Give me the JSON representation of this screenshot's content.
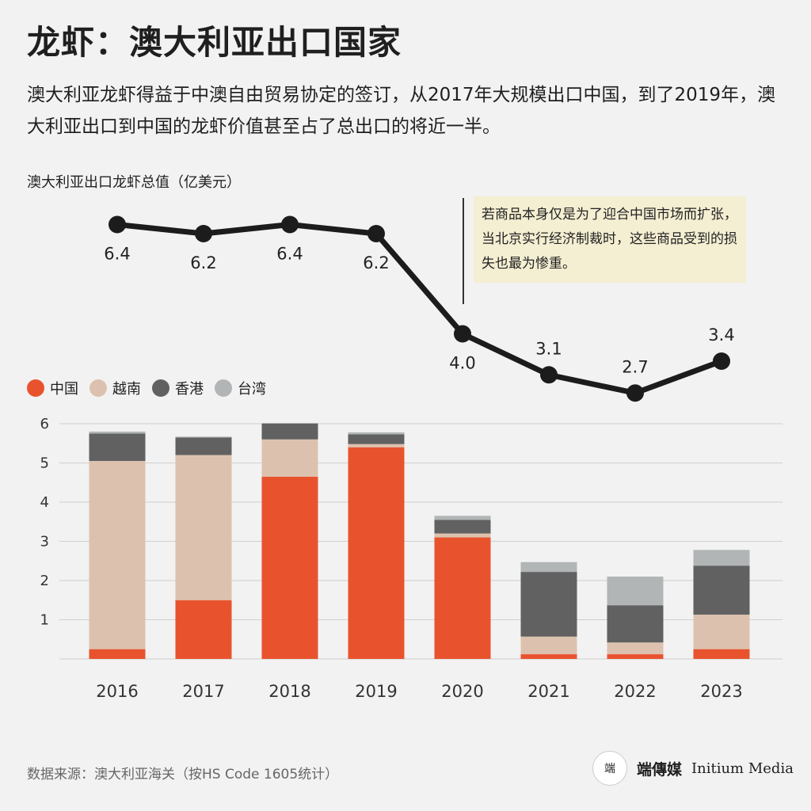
{
  "title": "龙虾：澳大利亚出口国家",
  "subtitle": "澳大利亚龙虾得益于中澳自由贸易协定的签订，从2017年大规模出口中国，到了2019年，澳大利亚出口到中国的龙虾价值甚至占了总出口的将近一半。",
  "annotation": "若商品本身仅是为了迎合中国市场而扩张，当北京实行经济制裁时，这些商品受到的损失也最为惨重。",
  "source": "数据来源：澳大利亚海关（按HS Code 1605统计）",
  "brand": {
    "logo": "端",
    "name_cn": "端傳媒",
    "name_en": "Initium Media"
  },
  "colors": {
    "china": "#e8532e",
    "vietnam": "#dcc2ae",
    "hongkong": "#616161",
    "taiwan": "#b1b5b5",
    "line": "#1c1c1c",
    "grid": "#cfcfcf",
    "annotation_bg": "#f4eed2"
  },
  "chart_data": [
    {
      "type": "line",
      "title": "澳大利亚出口龙虾总值（亿美元）",
      "x": [
        "2016",
        "2017",
        "2018",
        "2019",
        "2020",
        "2021",
        "2022",
        "2023"
      ],
      "values": [
        6.4,
        6.2,
        6.4,
        6.2,
        4.0,
        3.1,
        2.7,
        3.4
      ],
      "value_labels": [
        "6.4",
        "6.2",
        "6.4",
        "6.2",
        "4.0",
        "3.1",
        "2.7",
        "3.4"
      ],
      "ylim": [
        2.2,
        6.6
      ],
      "annotation_after": "2019"
    },
    {
      "type": "bar",
      "stacked": true,
      "categories": [
        "2016",
        "2017",
        "2018",
        "2019",
        "2020",
        "2021",
        "2022",
        "2023"
      ],
      "series": [
        {
          "name": "中国",
          "color_key": "china",
          "values": [
            0.25,
            1.5,
            4.65,
            5.4,
            3.1,
            0.12,
            0.12,
            0.25
          ]
        },
        {
          "name": "越南",
          "color_key": "vietnam",
          "values": [
            4.8,
            3.7,
            0.95,
            0.08,
            0.1,
            0.45,
            0.3,
            0.88
          ]
        },
        {
          "name": "香港",
          "color_key": "hongkong",
          "values": [
            0.7,
            0.45,
            0.4,
            0.25,
            0.35,
            1.65,
            0.95,
            1.25
          ]
        },
        {
          "name": "台湾",
          "color_key": "taiwan",
          "values": [
            0.05,
            0.02,
            0.02,
            0.05,
            0.1,
            0.25,
            0.73,
            0.4
          ]
        }
      ],
      "yticks": [
        "1",
        "2",
        "3",
        "4",
        "5",
        "6"
      ],
      "ylim": [
        0,
        6
      ],
      "grid": true,
      "legend": "top-left"
    }
  ]
}
